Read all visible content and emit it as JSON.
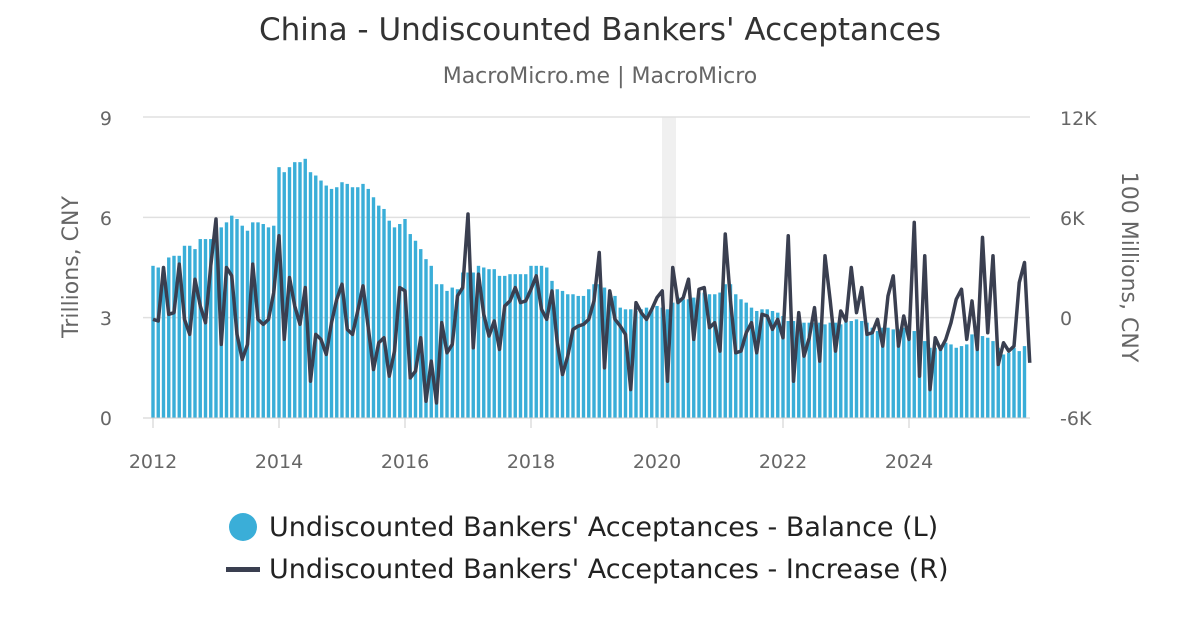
{
  "title": "China - Undiscounted Bankers' Acceptances",
  "subtitle": "MacroMicro.me | MacroMicro",
  "colors": {
    "bars": "#3aaed8",
    "line": "#3a3f50",
    "grid": "#e0e0e0",
    "watermark": "#f0f0f0"
  },
  "chart_data": {
    "type": "bar+line",
    "x_ticks": [
      "2012",
      "2014",
      "2016",
      "2018",
      "2020",
      "2022",
      "2024"
    ],
    "grid": true,
    "legend_position": "bottom",
    "y_left": {
      "label": "Trillions, CNY",
      "range": [
        0,
        9
      ],
      "ticks": [
        "0",
        "3",
        "6",
        "9"
      ]
    },
    "y_right": {
      "label": "100 Millions, CNY",
      "range": [
        -6000,
        12000
      ],
      "ticks": [
        "-6K",
        "0",
        "6K",
        "12K"
      ]
    },
    "start_year": 2012,
    "series": [
      {
        "name": "Undiscounted Bankers' Acceptances - Balance (L)",
        "type": "bar",
        "axis": "left",
        "values": [
          4.55,
          4.5,
          4.5,
          4.8,
          4.85,
          4.85,
          5.15,
          5.15,
          5.05,
          5.35,
          5.35,
          5.35,
          5.6,
          5.7,
          5.85,
          6.05,
          5.95,
          5.75,
          5.6,
          5.85,
          5.85,
          5.8,
          5.7,
          5.75,
          7.5,
          7.35,
          7.5,
          7.65,
          7.65,
          7.75,
          7.35,
          7.25,
          7.1,
          6.95,
          6.85,
          6.9,
          7.05,
          7.0,
          6.9,
          6.9,
          7.0,
          6.85,
          6.6,
          6.35,
          6.25,
          5.9,
          5.7,
          5.8,
          5.95,
          5.5,
          5.3,
          5.05,
          4.75,
          4.55,
          4.0,
          4.0,
          3.8,
          3.9,
          3.85,
          4.35,
          4.35,
          4.35,
          4.55,
          4.5,
          4.45,
          4.45,
          4.25,
          4.25,
          4.3,
          4.3,
          4.3,
          4.3,
          4.55,
          4.55,
          4.55,
          4.5,
          4.1,
          3.85,
          3.8,
          3.7,
          3.7,
          3.65,
          3.65,
          3.85,
          4.0,
          4.0,
          3.9,
          3.8,
          3.65,
          3.3,
          3.25,
          3.25,
          3.2,
          3.25,
          3.3,
          3.25,
          3.35,
          3.3,
          3.25,
          3.45,
          3.6,
          3.55,
          3.55,
          3.6,
          3.75,
          3.75,
          3.7,
          3.7,
          3.75,
          4.0,
          4.0,
          3.7,
          3.55,
          3.45,
          3.3,
          3.2,
          3.25,
          3.25,
          3.2,
          3.15,
          3.05,
          2.9,
          2.9,
          2.95,
          2.85,
          2.85,
          2.85,
          2.85,
          2.8,
          2.85,
          2.85,
          2.8,
          2.9,
          2.9,
          2.95,
          2.9,
          2.85,
          2.7,
          2.6,
          2.7,
          2.7,
          2.65,
          2.65,
          2.7,
          2.6,
          2.6,
          2.5,
          2.3,
          2.1,
          2.1,
          2.15,
          2.25,
          2.2,
          2.1,
          2.15,
          2.2,
          2.5,
          2.5,
          2.45,
          2.4,
          2.3,
          2.1,
          1.9,
          1.95,
          2.1,
          2.0,
          2.15
        ]
      },
      {
        "name": "Undiscounted Bankers' Acceptances - Increase (R)",
        "type": "line",
        "axis": "right",
        "values": [
          -100,
          -200,
          3000,
          200,
          300,
          3200,
          -100,
          -1000,
          2300,
          700,
          -300,
          3100,
          5900,
          -1600,
          3000,
          2500,
          -1000,
          -2500,
          -1600,
          3200,
          -100,
          -400,
          -100,
          1500,
          4900,
          -1300,
          2400,
          700,
          -400,
          1800,
          -3800,
          -1000,
          -1300,
          -2200,
          -300,
          1100,
          2000,
          -700,
          -1000,
          400,
          1900,
          -600,
          -3100,
          -1500,
          -1200,
          -3500,
          -2000,
          1800,
          1600,
          -3600,
          -3200,
          -1200,
          -5000,
          -2600,
          -5100,
          -300,
          -2100,
          -1600,
          1300,
          1800,
          6200,
          -1800,
          2600,
          200,
          -1100,
          -200,
          -1900,
          700,
          1000,
          1800,
          900,
          1000,
          1700,
          2500,
          500,
          -100,
          1600,
          -1500,
          -3400,
          -2300,
          -700,
          -500,
          -400,
          -100,
          1000,
          3900,
          -3000,
          1600,
          -100,
          -500,
          -1000,
          -4300,
          900,
          300,
          -100,
          500,
          1200,
          1600,
          -3800,
          3000,
          900,
          1200,
          2300,
          -1300,
          1700,
          1800,
          -600,
          -300,
          -2000,
          5000,
          1000,
          -2100,
          -2000,
          -900,
          -300,
          -2100,
          200,
          100,
          -700,
          -100,
          -1200,
          4900,
          -3800,
          300,
          -2300,
          -1200,
          600,
          -2600,
          3700,
          1000,
          -2000,
          400,
          -200,
          3000,
          300,
          1800,
          -1000,
          -900,
          -100,
          -1700,
          1300,
          2500,
          -1700,
          100,
          -1300,
          5700,
          -3500,
          3700,
          -4300,
          -1200,
          -1900,
          -1300,
          -300,
          1100,
          1700,
          -1300,
          1000,
          -1900,
          4800,
          -900,
          3700,
          -2800,
          -1500,
          -2000,
          -1700,
          2100,
          3300,
          -2700
        ]
      }
    ]
  },
  "legend": {
    "items": [
      {
        "label": "Undiscounted Bankers' Acceptances - Balance (L)"
      },
      {
        "label": "Undiscounted Bankers' Acceptances - Increase (R)"
      }
    ]
  }
}
